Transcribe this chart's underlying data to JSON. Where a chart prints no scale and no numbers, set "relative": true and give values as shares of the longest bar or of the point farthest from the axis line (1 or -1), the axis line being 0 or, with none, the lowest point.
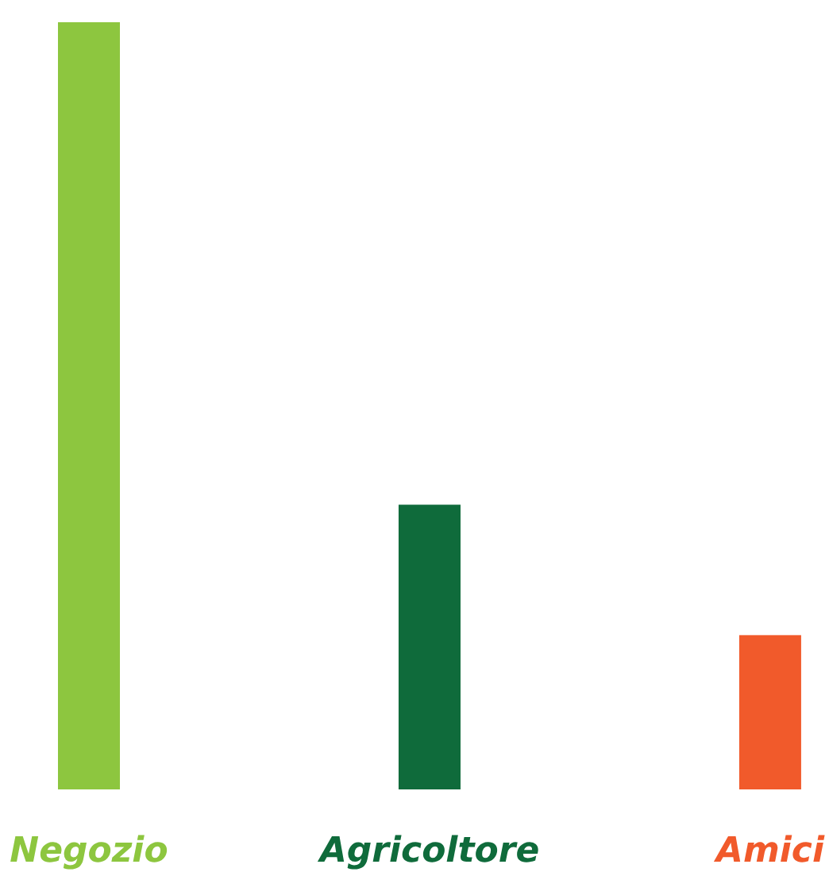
{
  "chart_data": {
    "type": "bar",
    "relative": true,
    "categories": [
      "Negozio",
      "Agricoltore",
      "Amici"
    ],
    "values": [
      1,
      0.371,
      0.201
    ],
    "colors": [
      "#8dc63f",
      "#0f6b3b",
      "#f15a2b"
    ]
  }
}
